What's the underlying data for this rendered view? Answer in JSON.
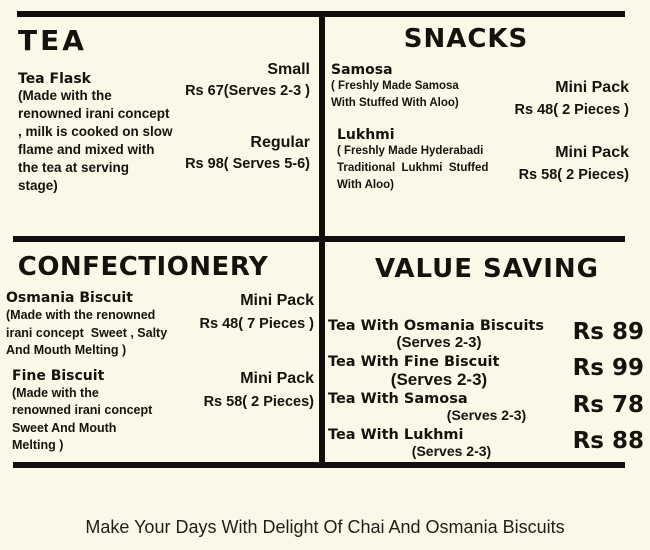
{
  "colors": {
    "background": "#FAF8E6",
    "ink": "#16130E",
    "divider_line": "#100F0D"
  },
  "sections": {
    "tea": {
      "title": "TEA",
      "items": [
        {
          "name": "Tea Flask",
          "desc": "(Made with the\nrenowned irani concept\n, milk is cooked on slow\nflame and mixed with\nthe tea at serving\nstage)",
          "options": [
            {
              "size": "Small",
              "price": "Rs 67(Serves  2-3 )"
            },
            {
              "size": "Regular",
              "price": "Rs 98( Serves 5-6)"
            }
          ]
        }
      ]
    },
    "snacks": {
      "title": "SNACKS",
      "items": [
        {
          "name": "Samosa",
          "desc": "( Freshly Made Samosa\nWith Stuffed With Aloo)",
          "size": "Mini Pack",
          "price": "Rs 48( 2 Pieces )"
        },
        {
          "name": "Lukhmi",
          "desc": "( Freshly Made Hyderabadi\nTraditional  Lukhmi  Stuffed\nWith Aloo)",
          "size": "Mini Pack",
          "price": "Rs 58( 2 Pieces)"
        }
      ]
    },
    "confectionery": {
      "title": "CONFECTIONERY",
      "items": [
        {
          "name": "Osmania Biscuit",
          "desc": "(Made with the renowned\nirani concept  Sweet , Salty\nAnd Mouth Melting )",
          "size": "Mini Pack",
          "price": "Rs 48( 7 Pieces )"
        },
        {
          "name": "Fine Biscuit",
          "desc": "(Made with the\nrenowned irani concept\nSweet And Mouth\nMelting )",
          "size": "Mini Pack",
          "price": "Rs 58( 2 Pieces)"
        }
      ]
    },
    "value_saving": {
      "title": "VALUE SAVING",
      "items": [
        {
          "name": "Tea With Osmania Biscuits",
          "serves": "(Serves 2-3)",
          "price": "Rs 89"
        },
        {
          "name": "Tea With Fine Biscuit",
          "serves": "(Serves 2-3)",
          "price": "Rs 99"
        },
        {
          "name": "Tea With Samosa",
          "serves": "(Serves 2-3)",
          "price": "Rs 78"
        },
        {
          "name": "Tea With Lukhmi",
          "serves": "(Serves 2-3)",
          "price": "Rs 88"
        }
      ]
    }
  },
  "tagline": "Make Your Days With Delight Of Chai And Osmania Biscuits"
}
